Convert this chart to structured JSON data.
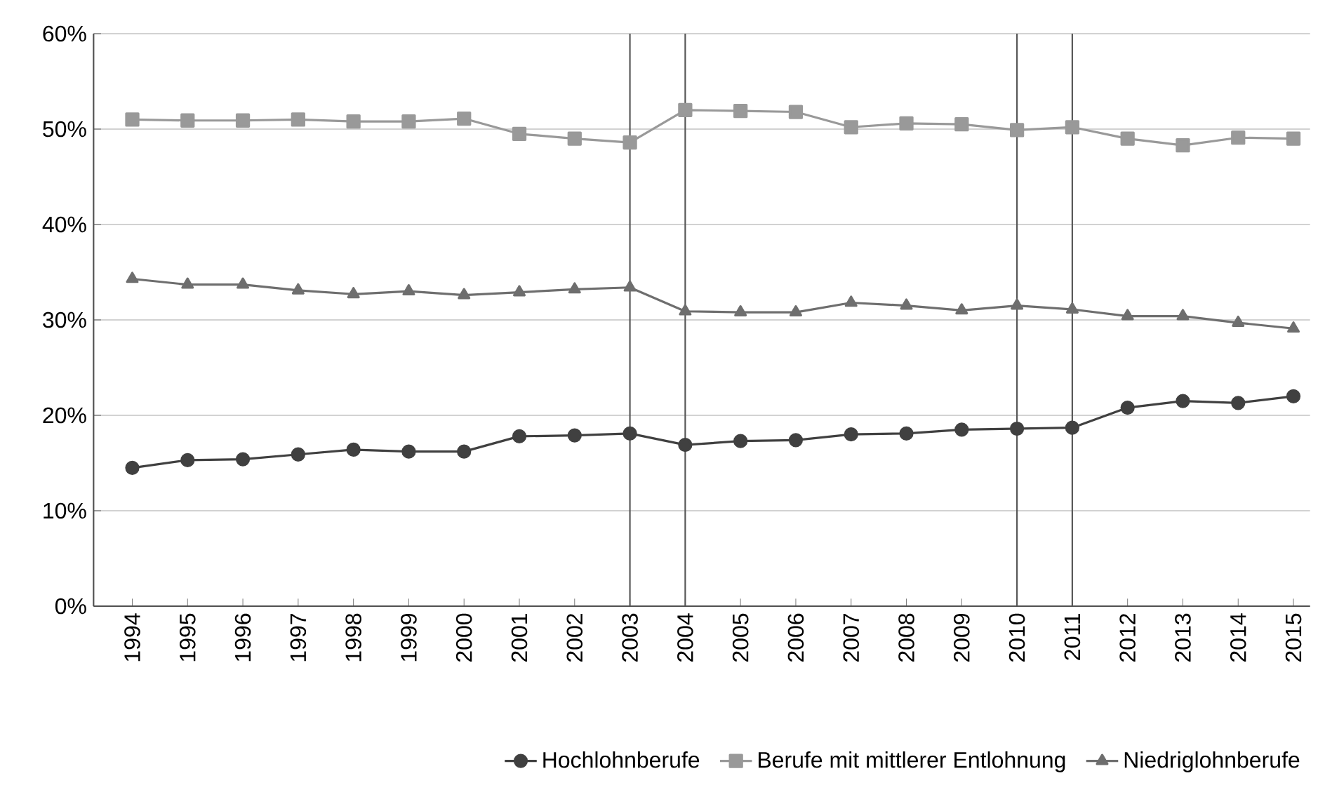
{
  "chart_data": {
    "type": "line",
    "x": [
      1994,
      1995,
      1996,
      1997,
      1998,
      1999,
      2000,
      2001,
      2002,
      2003,
      2004,
      2005,
      2006,
      2007,
      2008,
      2009,
      2010,
      2011,
      2012,
      2013,
      2014,
      2015
    ],
    "series": [
      {
        "name": "Hochlohnberufe",
        "color": "#404040",
        "marker": "circle",
        "values": [
          14.5,
          15.3,
          15.4,
          15.9,
          16.4,
          16.2,
          16.2,
          17.8,
          17.9,
          18.1,
          16.9,
          17.3,
          17.4,
          18.0,
          18.1,
          18.5,
          18.6,
          18.7,
          20.8,
          21.5,
          21.3,
          22.0
        ]
      },
      {
        "name": "Berufe mit mittlerer Entlohnung",
        "color": "#999999",
        "marker": "square",
        "values": [
          51.0,
          50.9,
          50.9,
          51.0,
          50.8,
          50.8,
          51.1,
          49.5,
          49.0,
          48.6,
          52.0,
          51.9,
          51.8,
          50.2,
          50.6,
          50.5,
          49.9,
          50.2,
          49.0,
          48.3,
          49.1,
          49.0
        ]
      },
      {
        "name": "Niedriglohnberufe",
        "color": "#6e6e6e",
        "marker": "triangle",
        "values": [
          34.3,
          33.7,
          33.7,
          33.1,
          32.7,
          33.0,
          32.6,
          32.9,
          33.2,
          33.4,
          30.9,
          30.8,
          30.8,
          31.8,
          31.5,
          31.0,
          31.5,
          31.1,
          30.4,
          30.4,
          29.7,
          29.1
        ]
      }
    ],
    "xlim": [
      1993.3,
      2015.3
    ],
    "xticks": [
      1994,
      1995,
      1996,
      1997,
      1998,
      1999,
      2000,
      2001,
      2002,
      2003,
      2004,
      2005,
      2006,
      2007,
      2008,
      2009,
      2010,
      2011,
      2012,
      2013,
      2014,
      2015
    ],
    "ylim": [
      0,
      60
    ],
    "yticks": [
      {
        "value": 0,
        "label": "0%"
      },
      {
        "value": 10,
        "label": "10%"
      },
      {
        "value": 20,
        "label": "20%"
      },
      {
        "value": 30,
        "label": "30%"
      },
      {
        "value": 40,
        "label": "40%"
      },
      {
        "value": 50,
        "label": "50%"
      },
      {
        "value": 60,
        "label": "60%"
      }
    ],
    "ref_lines": [
      {
        "axis": "x",
        "value": 2003,
        "color": "#555555"
      },
      {
        "axis": "x",
        "value": 2004,
        "color": "#555555"
      },
      {
        "axis": "x",
        "value": 2010,
        "color": "#555555"
      },
      {
        "axis": "x",
        "value": 2011,
        "color": "#555555"
      }
    ],
    "grid": "y",
    "legend": "bottom",
    "line_style": "solid"
  }
}
